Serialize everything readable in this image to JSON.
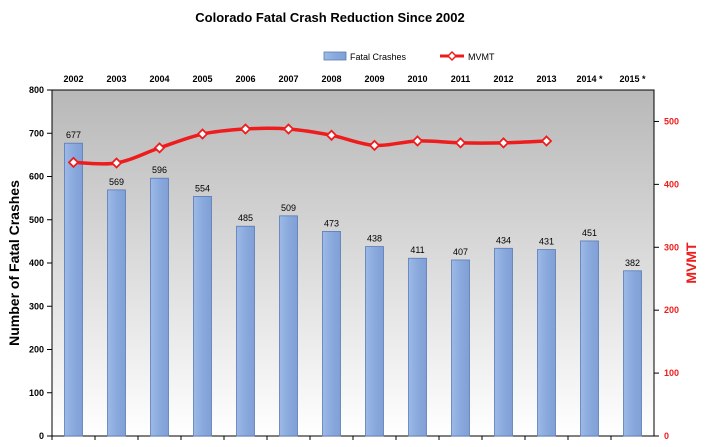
{
  "chart_data": {
    "type": "bar",
    "title": "Colorado Fatal Crash Reduction Since 2002",
    "categories": [
      "2002",
      "2003",
      "2004",
      "2005",
      "2006",
      "2007",
      "2008",
      "2009",
      "2010",
      "2011",
      "2012",
      "2013",
      "2014 *",
      "2015 *"
    ],
    "series": [
      {
        "name": "Fatal Crashes",
        "type": "bar",
        "axis": "left",
        "color": "#8fb0e0",
        "values": [
          677,
          569,
          596,
          554,
          485,
          509,
          473,
          438,
          411,
          407,
          434,
          431,
          451,
          382
        ]
      },
      {
        "name": "MVMT",
        "type": "line",
        "axis": "right",
        "color": "#ee1c1c",
        "values": [
          435,
          434,
          458,
          480,
          488,
          488,
          478,
          462,
          469,
          466,
          466,
          469,
          null,
          null
        ]
      }
    ],
    "ylabel": "Number of Fatal Crashes",
    "ylim": [
      0,
      800
    ],
    "yticks": [
      0,
      100,
      200,
      300,
      400,
      500,
      600,
      700,
      800
    ],
    "y2label": "MVMT",
    "y2lim": [
      0,
      550
    ],
    "y2ticks": [
      0,
      100,
      200,
      300,
      400,
      500
    ],
    "legend_position": "top",
    "grid": false,
    "plot_background": "gradient gray"
  }
}
